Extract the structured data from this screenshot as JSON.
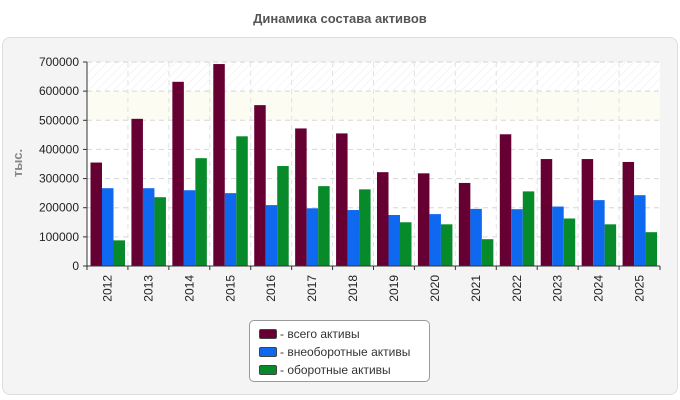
{
  "chart_data": {
    "type": "bar",
    "title": "Динамика состава активов",
    "ylabel": "тыс.",
    "xlabel": "",
    "ylim": [
      0,
      700000
    ],
    "yticks": [
      0,
      100000,
      200000,
      300000,
      400000,
      500000,
      600000,
      700000
    ],
    "ytick_labels": [
      "0",
      "100000",
      "200000",
      "300000",
      "400000",
      "500000",
      "600000",
      "700000"
    ],
    "grid": true,
    "legend_position": "bottom-center",
    "categories": [
      "2012",
      "2013",
      "2014",
      "2015",
      "2016",
      "2017",
      "2018",
      "2019",
      "2020",
      "2021",
      "2022",
      "2023",
      "2024",
      "2025"
    ],
    "series": [
      {
        "name": "всего активы",
        "legend_label": "- всего активы",
        "color": "#660033",
        "values": [
          355000,
          505000,
          632000,
          693000,
          552000,
          472000,
          455000,
          322000,
          318000,
          285000,
          452000,
          367000,
          367000,
          357000
        ]
      },
      {
        "name": "внеоборотные активы",
        "legend_label": "- внеоборотные активы",
        "color": "#0f68f0",
        "values": [
          267000,
          267000,
          260000,
          250000,
          209000,
          198000,
          192000,
          175000,
          178000,
          196000,
          195000,
          204000,
          226000,
          243000
        ]
      },
      {
        "name": "оборотные активы",
        "legend_label": "- оборотные активы",
        "color": "#078a2a",
        "values": [
          88000,
          236000,
          370000,
          445000,
          343000,
          274000,
          263000,
          150000,
          143000,
          92000,
          256000,
          163000,
          143000,
          116000
        ]
      }
    ]
  }
}
